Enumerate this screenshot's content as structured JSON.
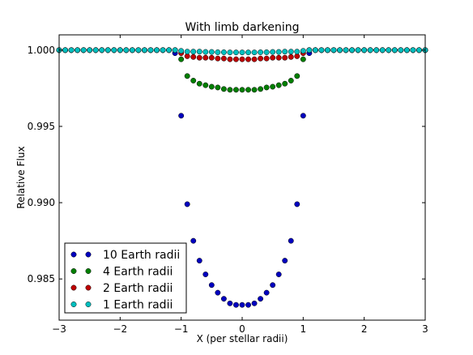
{
  "chart_data": {
    "type": "scatter",
    "title": "With limb darkening",
    "xlabel": "X (per stellar radii)",
    "ylabel": "Relative Flux",
    "xlim": [
      -3,
      3
    ],
    "ylim": [
      0.9823,
      1.001
    ],
    "x_ticks": [
      -3,
      -2,
      -1,
      0,
      1,
      2,
      3
    ],
    "x_tick_labels": [
      "−3",
      "−2",
      "−1",
      "0",
      "1",
      "2",
      "3"
    ],
    "y_ticks": [
      0.985,
      0.99,
      0.995,
      1.0
    ],
    "y_tick_labels": [
      "0.985",
      "0.990",
      "0.995",
      "1.000"
    ],
    "grid": false,
    "legend_position": "bottom-left",
    "x": [
      -3.0,
      -2.9,
      -2.8,
      -2.7,
      -2.6,
      -2.5,
      -2.4,
      -2.3,
      -2.2,
      -2.1,
      -2.0,
      -1.9,
      -1.8,
      -1.7,
      -1.6,
      -1.5,
      -1.4,
      -1.3,
      -1.2,
      -1.1,
      -1.0,
      -0.9,
      -0.8,
      -0.7,
      -0.6,
      -0.5,
      -0.4,
      -0.3,
      -0.2,
      -0.1,
      0.0,
      0.1,
      0.2,
      0.3,
      0.4,
      0.5,
      0.6,
      0.7,
      0.8,
      0.9,
      1.0,
      1.1,
      1.2,
      1.3,
      1.4,
      1.5,
      1.6,
      1.7,
      1.8,
      1.9,
      2.0,
      2.1,
      2.2,
      2.3,
      2.4,
      2.5,
      2.6,
      2.7,
      2.8,
      2.9,
      3.0
    ],
    "series": [
      {
        "name": "10 Earth radii",
        "color": "#0000bf",
        "values": [
          1.0,
          1.0,
          1.0,
          1.0,
          1.0,
          1.0,
          1.0,
          1.0,
          1.0,
          1.0,
          1.0,
          1.0,
          1.0,
          1.0,
          1.0,
          1.0,
          1.0,
          1.0,
          1.0,
          0.9998,
          0.9957,
          0.9899,
          0.9875,
          0.9862,
          0.9853,
          0.9846,
          0.9841,
          0.9837,
          0.9834,
          0.9833,
          0.9833,
          0.9833,
          0.9834,
          0.9837,
          0.9841,
          0.9846,
          0.9853,
          0.9862,
          0.9875,
          0.9899,
          0.9957,
          0.9998,
          1.0,
          1.0,
          1.0,
          1.0,
          1.0,
          1.0,
          1.0,
          1.0,
          1.0,
          1.0,
          1.0,
          1.0,
          1.0,
          1.0,
          1.0,
          1.0,
          1.0,
          1.0,
          1.0
        ]
      },
      {
        "name": "4 Earth radii",
        "color": "#007f00",
        "values": [
          1.0,
          1.0,
          1.0,
          1.0,
          1.0,
          1.0,
          1.0,
          1.0,
          1.0,
          1.0,
          1.0,
          1.0,
          1.0,
          1.0,
          1.0,
          1.0,
          1.0,
          1.0,
          1.0,
          1.0,
          0.9994,
          0.9983,
          0.998,
          0.9978,
          0.9977,
          0.9976,
          0.99755,
          0.99745,
          0.9974,
          0.9974,
          0.9974,
          0.9974,
          0.9974,
          0.99745,
          0.99755,
          0.9976,
          0.9977,
          0.9978,
          0.998,
          0.9983,
          0.9994,
          1.0,
          1.0,
          1.0,
          1.0,
          1.0,
          1.0,
          1.0,
          1.0,
          1.0,
          1.0,
          1.0,
          1.0,
          1.0,
          1.0,
          1.0,
          1.0,
          1.0,
          1.0,
          1.0,
          1.0
        ]
      },
      {
        "name": "2 Earth radii",
        "color": "#bf0000",
        "values": [
          1.0,
          1.0,
          1.0,
          1.0,
          1.0,
          1.0,
          1.0,
          1.0,
          1.0,
          1.0,
          1.0,
          1.0,
          1.0,
          1.0,
          1.0,
          1.0,
          1.0,
          1.0,
          1.0,
          1.0,
          0.9998,
          0.9996,
          0.99955,
          0.9995,
          0.9995,
          0.9995,
          0.99945,
          0.99945,
          0.9994,
          0.9994,
          0.9994,
          0.9994,
          0.9994,
          0.99945,
          0.99945,
          0.9995,
          0.9995,
          0.9995,
          0.99955,
          0.9996,
          0.9998,
          1.0,
          1.0,
          1.0,
          1.0,
          1.0,
          1.0,
          1.0,
          1.0,
          1.0,
          1.0,
          1.0,
          1.0,
          1.0,
          1.0,
          1.0,
          1.0,
          1.0,
          1.0,
          1.0,
          1.0
        ]
      },
      {
        "name": "1 Earth radii",
        "color": "#00bfbf",
        "values": [
          1.0,
          1.0,
          1.0,
          1.0,
          1.0,
          1.0,
          1.0,
          1.0,
          1.0,
          1.0,
          1.0,
          1.0,
          1.0,
          1.0,
          1.0,
          1.0,
          1.0,
          1.0,
          1.0,
          1.0,
          0.99995,
          0.9999,
          0.9999,
          0.9999,
          0.99988,
          0.99988,
          0.99986,
          0.99986,
          0.99985,
          0.99985,
          0.99985,
          0.99985,
          0.99985,
          0.99986,
          0.99986,
          0.99988,
          0.99988,
          0.9999,
          0.9999,
          0.9999,
          0.99995,
          1.0,
          1.0,
          1.0,
          1.0,
          1.0,
          1.0,
          1.0,
          1.0,
          1.0,
          1.0,
          1.0,
          1.0,
          1.0,
          1.0,
          1.0,
          1.0,
          1.0,
          1.0,
          1.0,
          1.0
        ]
      }
    ]
  }
}
